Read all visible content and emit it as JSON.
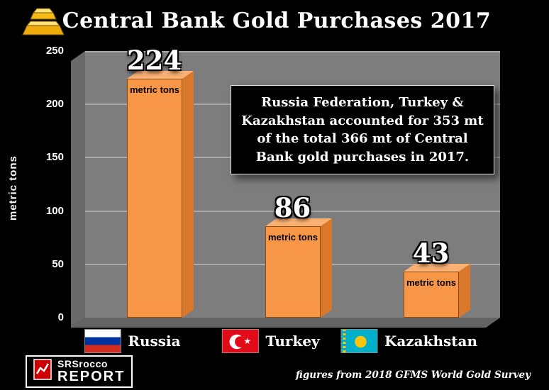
{
  "chart_data": {
    "type": "bar",
    "title": "Central Bank Gold Purchases 2017",
    "xlabel": "",
    "ylabel": "metric tons",
    "ylim": [
      0,
      250
    ],
    "yticks": [
      250,
      200,
      150,
      100,
      50,
      0
    ],
    "grid": true,
    "legend": "none",
    "categories": [
      "Russia",
      "Turkey",
      "Kazakhstan"
    ],
    "values": [
      224,
      86,
      43
    ],
    "flags": [
      "russia",
      "turkey",
      "kazakhstan"
    ],
    "bar_unit_label": "metric tons",
    "bar_color": "#F79646",
    "annotation": "Russia Federation, Turkey & Kazakhstan accounted for 353 mt of the total 366 mt of Central Bank gold purchases in 2017."
  },
  "header": {
    "gold_bars_icon": "gold-bars-icon"
  },
  "footer": {
    "logo_top": "SRSrocco",
    "logo_bottom": "REPORT",
    "source": "figures from 2018 GFMS World Gold Survey"
  }
}
